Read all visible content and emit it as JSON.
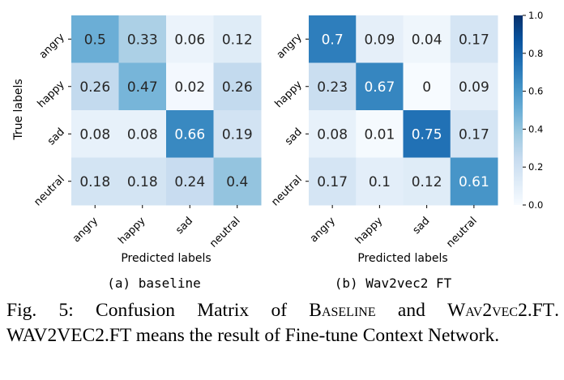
{
  "chart_data": [
    {
      "type": "heatmap",
      "subcaption": "(a) baseline",
      "xlabel": "Predicted labels",
      "ylabel": "True labels",
      "x_categories": [
        "angry",
        "happy",
        "sad",
        "neutral"
      ],
      "y_categories": [
        "angry",
        "happy",
        "sad",
        "neutral"
      ],
      "values": [
        [
          0.5,
          0.33,
          0.06,
          0.12
        ],
        [
          0.26,
          0.47,
          0.02,
          0.26
        ],
        [
          0.08,
          0.08,
          0.66,
          0.19
        ],
        [
          0.18,
          0.18,
          0.24,
          0.4
        ]
      ],
      "value_labels": [
        [
          "0.5",
          "0.33",
          "0.06",
          "0.12"
        ],
        [
          "0.26",
          "0.47",
          "0.02",
          "0.26"
        ],
        [
          "0.08",
          "0.08",
          "0.66",
          "0.19"
        ],
        [
          "0.18",
          "0.18",
          "0.24",
          "0.4"
        ]
      ],
      "colormap": "Blues",
      "vmin": 0.0,
      "vmax": 1.0
    },
    {
      "type": "heatmap",
      "subcaption": "(b) Wav2vec2 FT",
      "xlabel": "Predicted labels",
      "ylabel": "",
      "x_categories": [
        "angry",
        "happy",
        "sad",
        "neutral"
      ],
      "y_categories": [
        "angry",
        "happy",
        "sad",
        "neutral"
      ],
      "values": [
        [
          0.7,
          0.09,
          0.04,
          0.17
        ],
        [
          0.23,
          0.67,
          0,
          0.09
        ],
        [
          0.08,
          0.01,
          0.75,
          0.17
        ],
        [
          0.17,
          0.1,
          0.12,
          0.61
        ]
      ],
      "value_labels": [
        [
          "0.7",
          "0.09",
          "0.04",
          "0.17"
        ],
        [
          "0.23",
          "0.67",
          "0",
          "0.09"
        ],
        [
          "0.08",
          "0.01",
          "0.75",
          "0.17"
        ],
        [
          "0.17",
          "0.1",
          "0.12",
          "0.61"
        ]
      ],
      "colormap": "Blues",
      "vmin": 0.0,
      "vmax": 1.0,
      "colorbar_ticks": [
        "0.0",
        "0.2",
        "0.4",
        "0.6",
        "0.8",
        "1.0"
      ]
    }
  ],
  "caption": {
    "prefix": "Fig. 5: Confusion Matrix of ",
    "name1": "Baseline",
    "mid": " and ",
    "name2": "Wav2vec2.FT",
    "after": ". WAV2VEC2.FT means the result of Fine-tune Context Network."
  },
  "colors": {
    "colormap_stops": [
      "#f7fbff",
      "#deebf7",
      "#c6dbef",
      "#9ecae1",
      "#6baed6",
      "#4292c6",
      "#2171b5",
      "#08519c",
      "#08306b"
    ]
  }
}
